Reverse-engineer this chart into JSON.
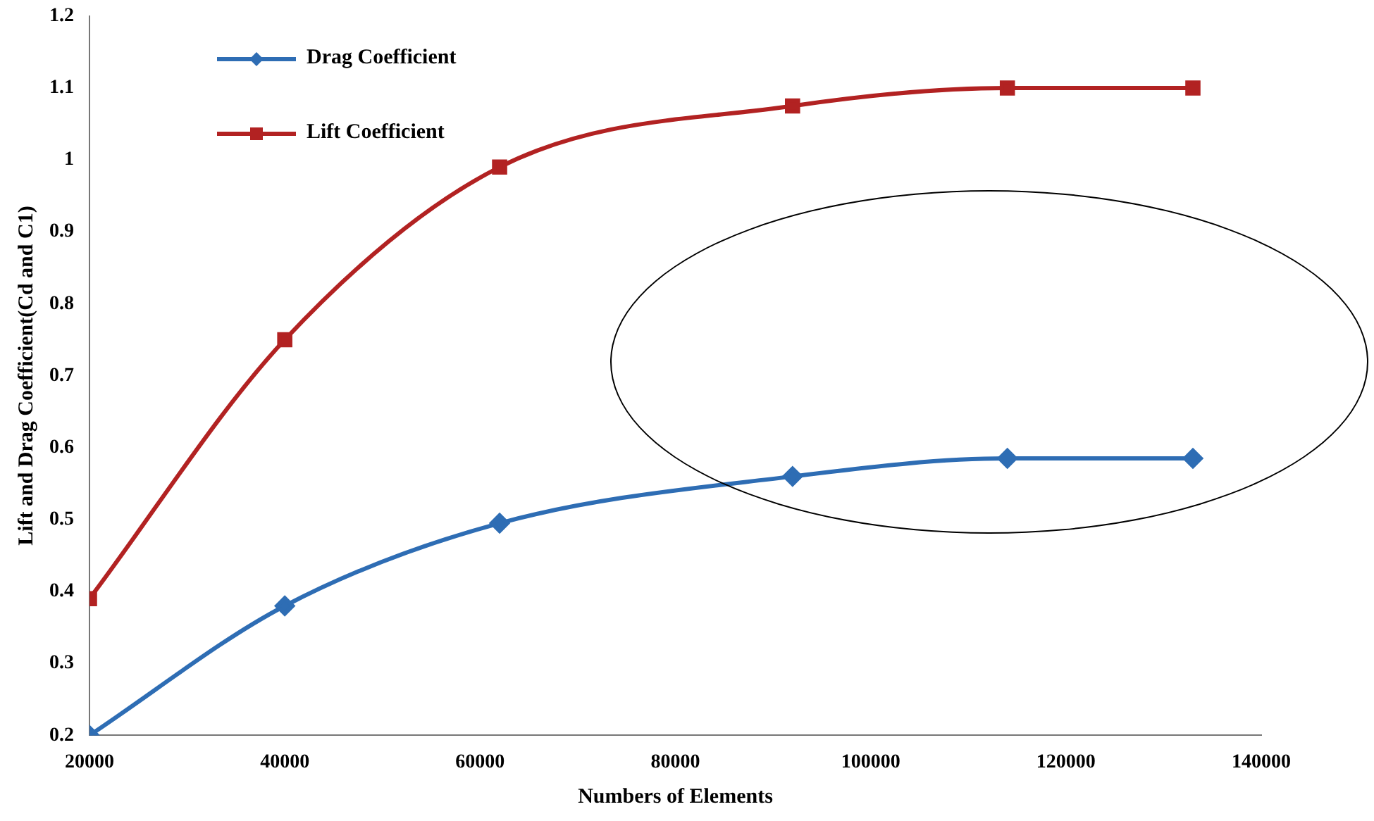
{
  "chart_data": {
    "type": "line",
    "xlabel": "Numbers of Elements",
    "ylabel": "Lift and Drag Coefficient(Cd and C1)",
    "x": [
      20000,
      40000,
      62000,
      92000,
      114000,
      133000
    ],
    "series": [
      {
        "name": "Drag Coefficient",
        "color": "#2e6db4",
        "marker": "diamond",
        "values": [
          0.2,
          0.38,
          0.495,
          0.56,
          0.585,
          0.585
        ]
      },
      {
        "name": "Lift Coefficient",
        "color": "#b22222",
        "marker": "square",
        "values": [
          0.39,
          0.75,
          0.99,
          1.075,
          1.1,
          1.1
        ]
      }
    ],
    "xlim": [
      20000,
      140000
    ],
    "xticks": [
      20000,
      40000,
      60000,
      80000,
      100000,
      120000,
      140000
    ],
    "ylim": [
      0.2,
      1.2
    ],
    "yticks": [
      0.2,
      0.3,
      0.4,
      0.5,
      0.6,
      0.7,
      0.8,
      0.9,
      1,
      1.1,
      1.2
    ],
    "grid": false,
    "legend": "top left"
  }
}
